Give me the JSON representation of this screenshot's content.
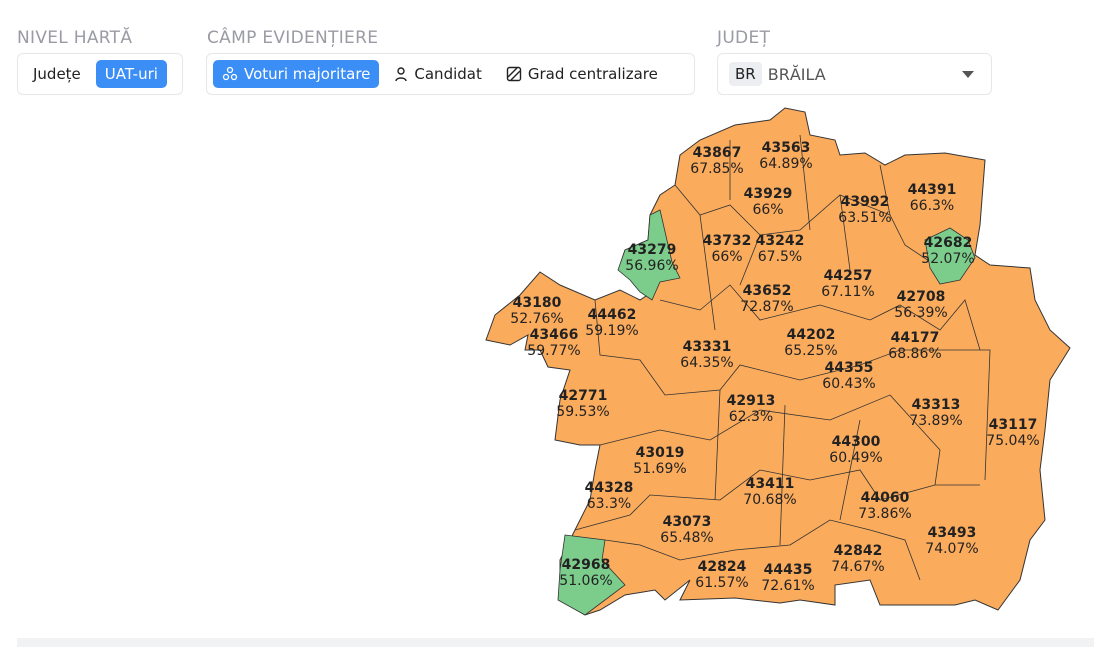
{
  "controls": {
    "map_level": {
      "label": "NIVEL HARTĂ",
      "options": [
        "Județe",
        "UAT-uri"
      ],
      "active": 1
    },
    "highlight_field": {
      "label": "CÂMP EVIDENȚIERE",
      "options": [
        "Voturi majoritare",
        "Candidat",
        "Grad centralizare"
      ],
      "active": 0
    },
    "county": {
      "label": "JUDEȚ",
      "code": "BR",
      "name": "BRĂILA"
    }
  },
  "map": {
    "regions": [
      {
        "label": "43867",
        "value": "67.85%",
        "color": "#fbab5c"
      },
      {
        "label": "43563",
        "value": "64.89%",
        "color": "#fbab5c"
      },
      {
        "label": "43929",
        "value": "66%",
        "color": "#fbab5c"
      },
      {
        "label": "43992",
        "value": "63.51%",
        "color": "#fbab5c"
      },
      {
        "label": "44391",
        "value": "66.3%",
        "color": "#fbab5c"
      },
      {
        "label": "43279",
        "value": "56.96%",
        "color": "#7ccd8c"
      },
      {
        "label": "43732",
        "value": "66%",
        "color": "#fbab5c"
      },
      {
        "label": "43242",
        "value": "67.5%",
        "color": "#fbab5c"
      },
      {
        "label": "42682",
        "value": "52.07%",
        "color": "#7ccd8c"
      },
      {
        "label": "44257",
        "value": "67.11%",
        "color": "#fbab5c"
      },
      {
        "label": "43652",
        "value": "72.87%",
        "color": "#fbab5c"
      },
      {
        "label": "42708",
        "value": "56.39%",
        "color": "#fbab5c"
      },
      {
        "label": "43180",
        "value": "52.76%",
        "color": "#fbab5c"
      },
      {
        "label": "44462",
        "value": "59.19%",
        "color": "#fbab5c"
      },
      {
        "label": "43466",
        "value": "59.77%",
        "color": "#fbab5c"
      },
      {
        "label": "43331",
        "value": "64.35%",
        "color": "#fbab5c"
      },
      {
        "label": "44202",
        "value": "65.25%",
        "color": "#fbab5c"
      },
      {
        "label": "44177",
        "value": "68.86%",
        "color": "#fbab5c"
      },
      {
        "label": "44355",
        "value": "60.43%",
        "color": "#fbab5c"
      },
      {
        "label": "42771",
        "value": "59.53%",
        "color": "#fbab5c"
      },
      {
        "label": "42913",
        "value": "62.3%",
        "color": "#fbab5c"
      },
      {
        "label": "43313",
        "value": "73.89%",
        "color": "#fbab5c"
      },
      {
        "label": "43117",
        "value": "75.04%",
        "color": "#fbab5c"
      },
      {
        "label": "44300",
        "value": "60.49%",
        "color": "#fbab5c"
      },
      {
        "label": "43019",
        "value": "51.69%",
        "color": "#fbab5c"
      },
      {
        "label": "43411",
        "value": "70.68%",
        "color": "#fbab5c"
      },
      {
        "label": "44060",
        "value": "73.86%",
        "color": "#fbab5c"
      },
      {
        "label": "44328",
        "value": "63.3%",
        "color": "#fbab5c"
      },
      {
        "label": "43073",
        "value": "65.48%",
        "color": "#fbab5c"
      },
      {
        "label": "43493",
        "value": "74.07%",
        "color": "#fbab5c"
      },
      {
        "label": "42968",
        "value": "51.06%",
        "color": "#7ccd8c"
      },
      {
        "label": "42842",
        "value": "74.67%",
        "color": "#fbab5c"
      },
      {
        "label": "42824",
        "value": "61.57%",
        "color": "#fbab5c"
      },
      {
        "label": "44435",
        "value": "72.61%",
        "color": "#fbab5c"
      }
    ]
  }
}
